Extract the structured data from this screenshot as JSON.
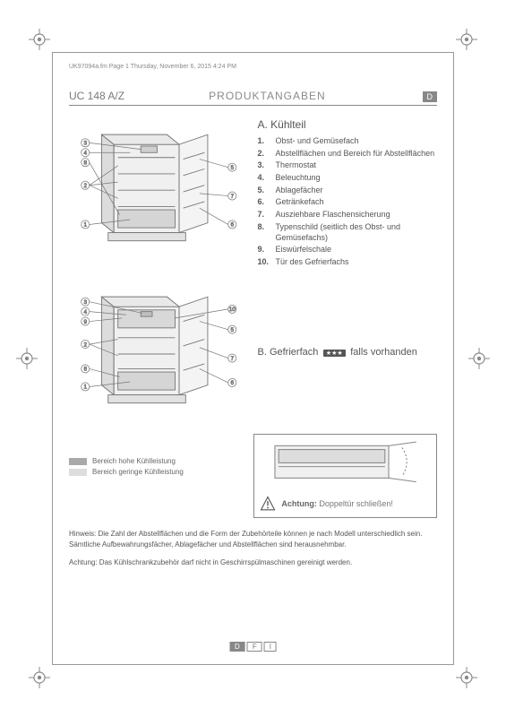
{
  "meta": {
    "doc_header": "UK97094a.fm Page 1  Thursday, November 6, 2015  4:24 PM"
  },
  "header": {
    "model": "UC 148 A/Z",
    "title": "PRODUKTANGABEN",
    "lang": "D"
  },
  "section_a": {
    "title": "A.  Kühlteil",
    "items": [
      {
        "n": "1.",
        "t": "Obst- und Gemüsefach"
      },
      {
        "n": "2.",
        "t": "Abstellflächen und Bereich für Abstellflächen"
      },
      {
        "n": "3.",
        "t": "Thermostat"
      },
      {
        "n": "4.",
        "t": "Beleuchtung"
      },
      {
        "n": "5.",
        "t": "Ablagefächer"
      },
      {
        "n": "6.",
        "t": "Getränkefach"
      },
      {
        "n": "7.",
        "t": "Ausziehbare Flaschensicherung"
      },
      {
        "n": "8.",
        "t": "Typenschild (seitlich des Obst- und Gemüsefachs)"
      },
      {
        "n": "9.",
        "t": "Eiswürfelschale"
      },
      {
        "n": "10.",
        "t": "Tür des Gefrierfachs"
      }
    ]
  },
  "section_b": {
    "title_pre": "B.  Gefrierfach",
    "badge": "★★★",
    "title_post": "falls vorhanden"
  },
  "legend": {
    "high": "Bereich hohe Kühlleistung",
    "low": "Bereich geringe Kühlleistung"
  },
  "warning": {
    "label": "Achtung:",
    "text": "Doppeltür schließen!"
  },
  "hinweis": "Hinweis: Die Zahl der Abstellflächen und die Form der Zubehörteile können je nach Modell unterschiedlich sein. Sämtliche Aufbewahrungsfächer, Ablagefächer und Abstellflächen sind herausnehmbar.",
  "achtung": "Achtung: Das Kühlschrankzubehör darf nicht in Geschirrspülmaschinen gereinigt werden.",
  "footer": {
    "tabs": [
      "D",
      "F",
      "I"
    ],
    "active": 0
  },
  "colors": {
    "line": "#888888",
    "body_fill": "#e9e9e9",
    "shelf": "#b0b0b0",
    "text": "#666666"
  }
}
